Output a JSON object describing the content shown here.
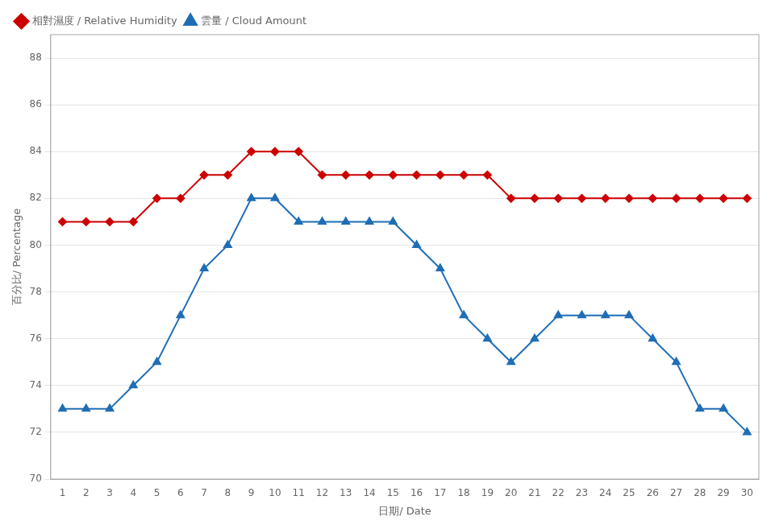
{
  "chart_data": {
    "type": "line",
    "xlabel": "日期/ Date",
    "ylabel": "百分比/ Percentage",
    "x": [
      1,
      2,
      3,
      4,
      5,
      6,
      7,
      8,
      9,
      10,
      11,
      12,
      13,
      14,
      15,
      16,
      17,
      18,
      19,
      20,
      21,
      22,
      23,
      24,
      25,
      26,
      27,
      28,
      29,
      30
    ],
    "series": [
      {
        "name": "相對濕度 / Relative Humidity",
        "color": "#cc0000",
        "marker": "diamond",
        "values": [
          81,
          81,
          81,
          81,
          82,
          82,
          83,
          83,
          84,
          84,
          84,
          83,
          83,
          83,
          83,
          83,
          83,
          83,
          83,
          82,
          82,
          82,
          82,
          82,
          82,
          82,
          82,
          82,
          82,
          82
        ]
      },
      {
        "name": "雲量 / Cloud Amount",
        "color": "#1f6eb5",
        "marker": "triangle",
        "values": [
          73,
          73,
          73,
          74,
          75,
          77,
          79,
          80,
          82,
          82,
          81,
          81,
          81,
          81,
          81,
          80,
          79,
          77,
          76,
          75,
          76,
          77,
          77,
          77,
          77,
          76,
          75,
          73,
          73,
          72
        ]
      }
    ],
    "xlim": [
      0.5,
      30.5
    ],
    "xticks": [
      1,
      2,
      3,
      4,
      5,
      6,
      7,
      8,
      9,
      10,
      11,
      12,
      13,
      14,
      15,
      16,
      17,
      18,
      19,
      20,
      21,
      22,
      23,
      24,
      25,
      26,
      27,
      28,
      29,
      30
    ],
    "ylim": [
      70,
      89
    ],
    "yticks": [
      70,
      72,
      74,
      76,
      78,
      80,
      82,
      84,
      86,
      88
    ],
    "grid": "y",
    "legend": "upper left"
  }
}
